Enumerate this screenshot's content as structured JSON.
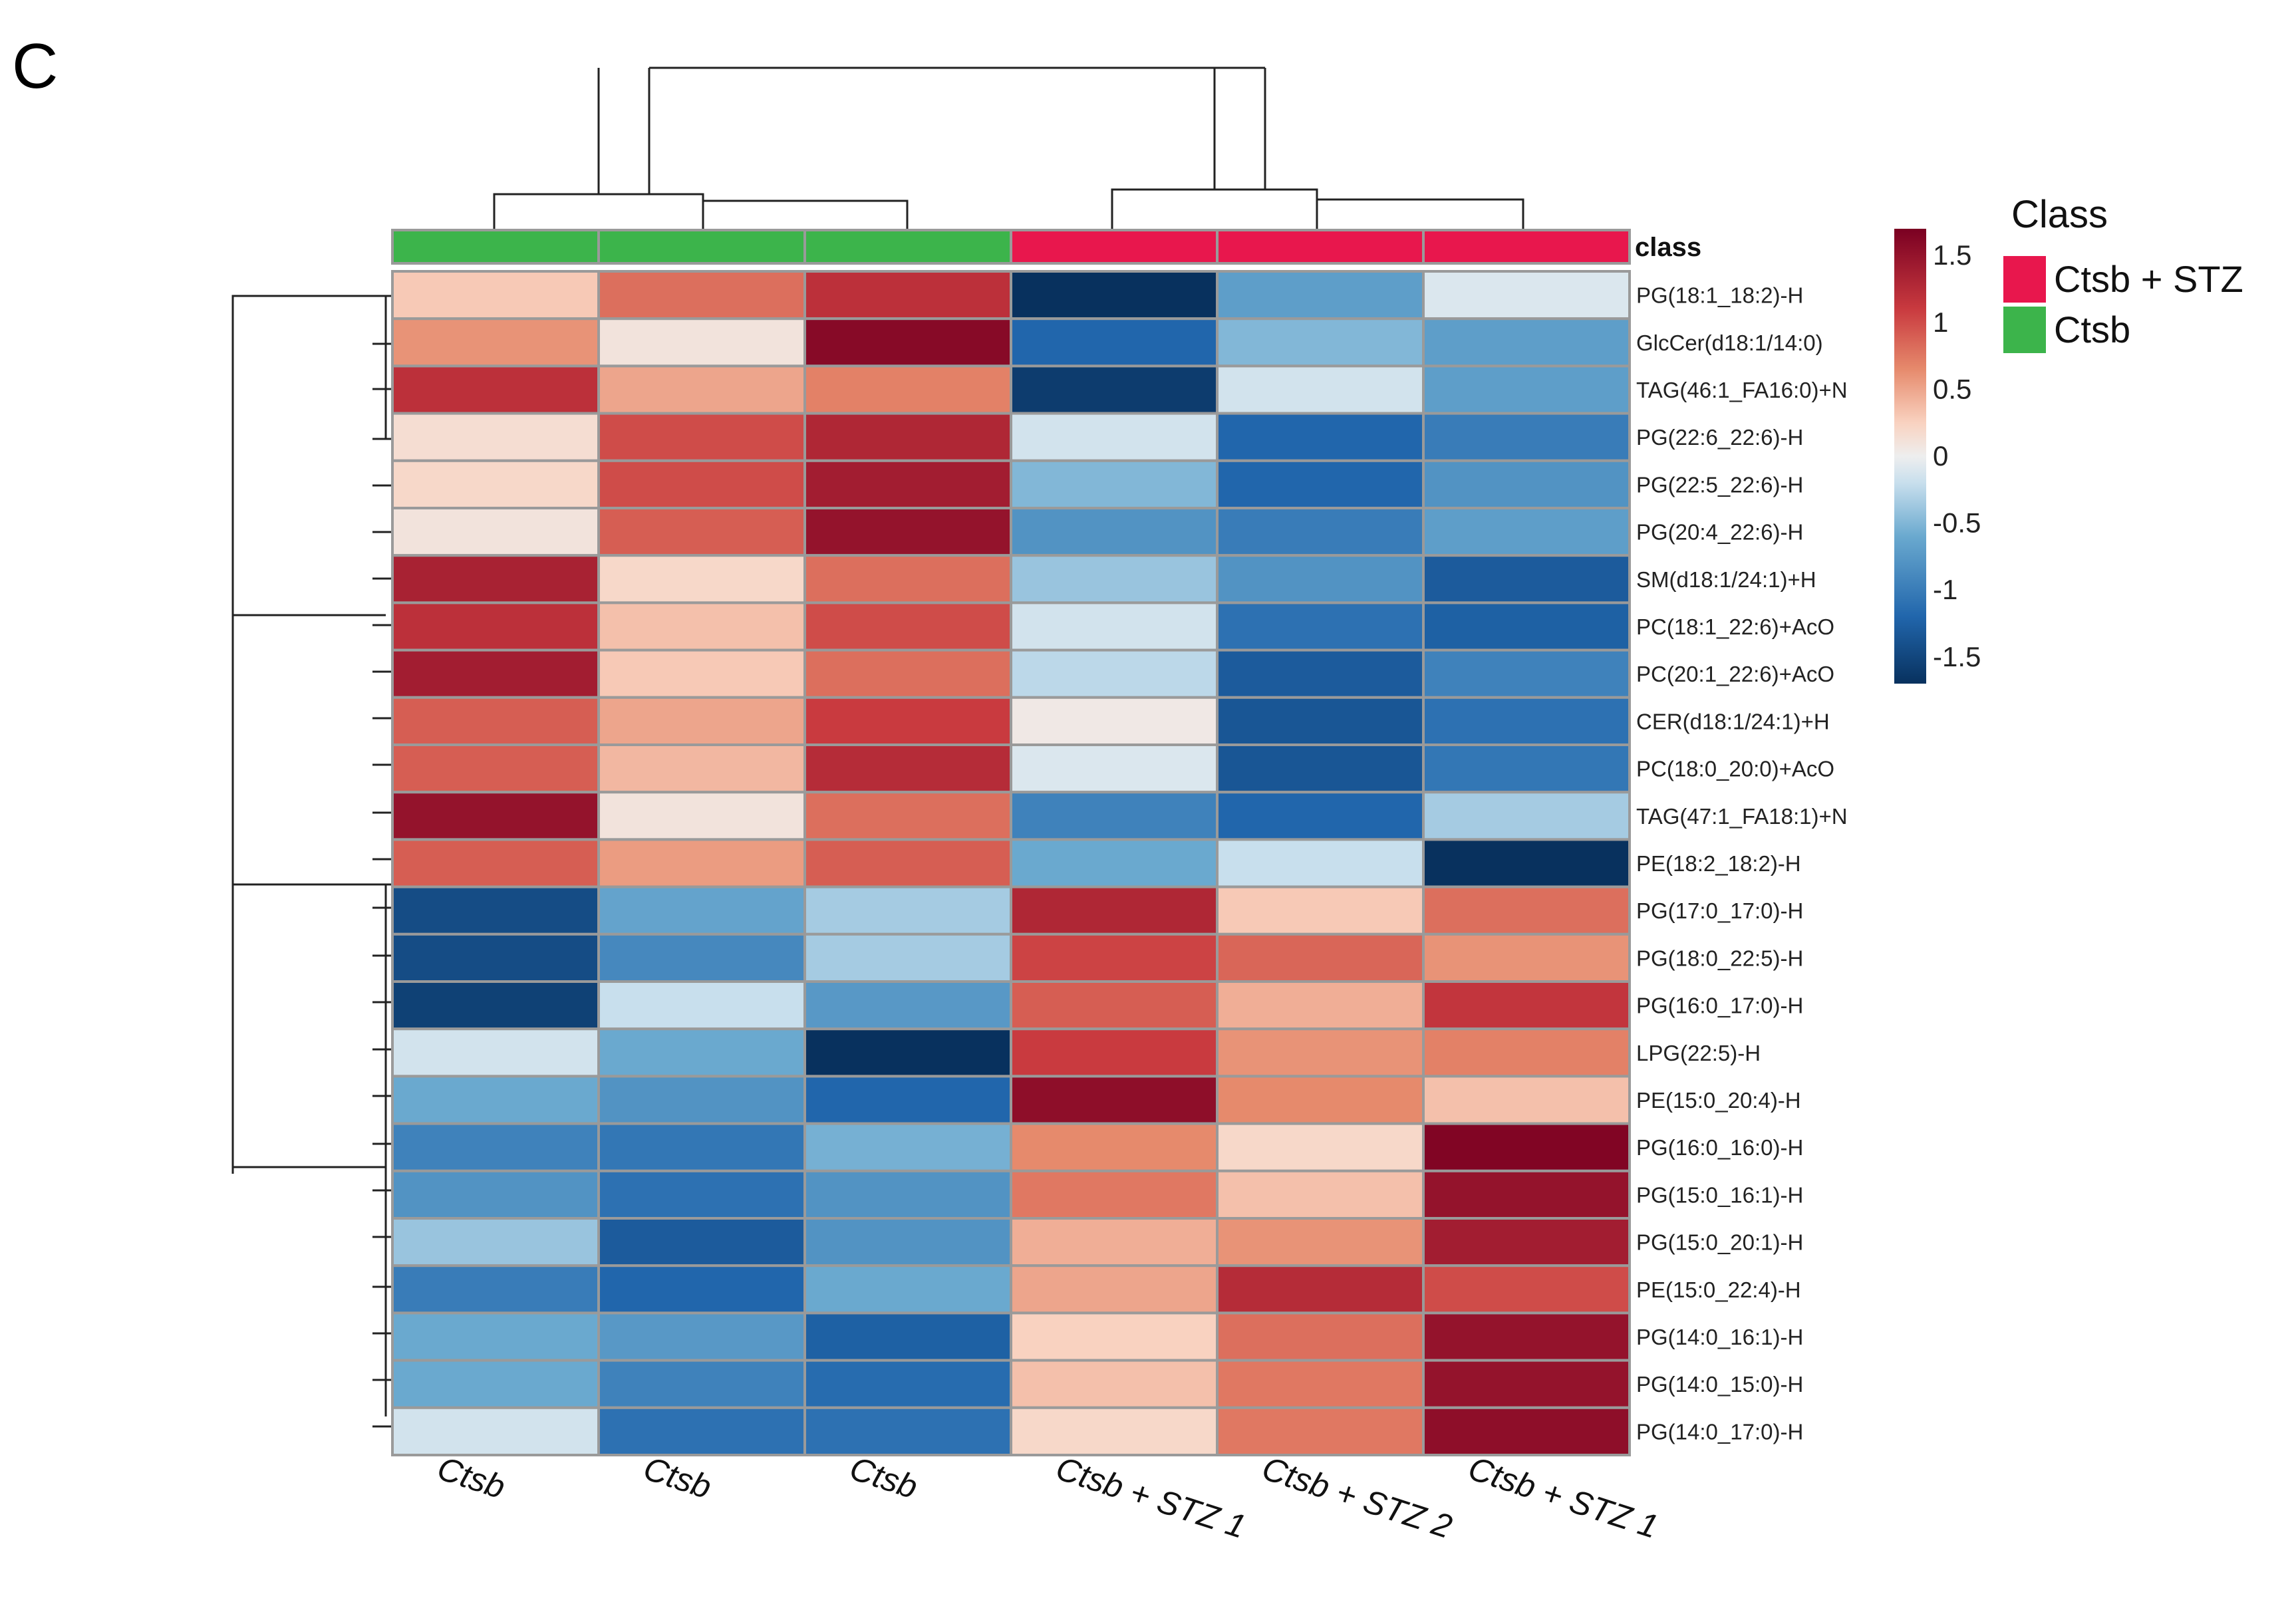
{
  "panel_label": "C",
  "chart_data": {
    "type": "heatmap",
    "title": "",
    "class_row_label": "class",
    "columns": [
      "Ctsb",
      "Ctsb",
      "Ctsb",
      "Ctsb + STZ 1",
      "Ctsb + STZ 2",
      "Ctsb + STZ 1"
    ],
    "column_classes": [
      "Ctsb",
      "Ctsb",
      "Ctsb",
      "Ctsb + STZ",
      "Ctsb + STZ",
      "Ctsb + STZ"
    ],
    "rows": [
      "PG(18:1_18:2)-H",
      "GlcCer(d18:1/14:0)",
      "TAG(46:1_FA16:0)+N",
      "PG(22:6_22:6)-H",
      "PG(22:5_22:6)-H",
      "PG(20:4_22:6)-H",
      "SM(d18:1/24:1)+H",
      "PC(18:1_22:6)+AcO",
      "PC(20:1_22:6)+AcO",
      "CER(d18:1/24:1)+H",
      "PC(18:0_20:0)+AcO",
      "TAG(47:1_FA18:1)+N",
      "PE(18:2_18:2)-H",
      "PG(17:0_17:0)-H",
      "PG(18:0_22:5)-H",
      "PG(16:0_17:0)-H",
      "LPG(22:5)-H",
      "PE(15:0_20:4)-H",
      "PG(16:0_16:0)-H",
      "PG(15:0_16:1)-H",
      "PG(15:0_20:1)-H",
      "PE(15:0_22:4)-H",
      "PG(14:0_16:1)-H",
      "PG(14:0_15:0)-H",
      "PG(14:0_17:0)-H"
    ],
    "values": [
      [
        0.3,
        0.8,
        1.2,
        -1.7,
        -0.7,
        -0.1
      ],
      [
        0.6,
        0.1,
        1.6,
        -1.2,
        -0.5,
        -0.7
      ],
      [
        1.2,
        0.5,
        0.7,
        -1.6,
        -0.15,
        -0.7
      ],
      [
        0.15,
        1.0,
        1.3,
        -0.15,
        -1.2,
        -1.0
      ],
      [
        0.2,
        1.0,
        1.4,
        -0.5,
        -1.2,
        -0.8
      ],
      [
        0.1,
        0.9,
        1.5,
        -0.8,
        -1.0,
        -0.7
      ],
      [
        1.35,
        0.2,
        0.8,
        -0.4,
        -0.8,
        -1.3
      ],
      [
        1.2,
        0.35,
        1.0,
        -0.15,
        -1.1,
        -1.25
      ],
      [
        1.4,
        0.3,
        0.8,
        -0.25,
        -1.3,
        -0.95
      ],
      [
        0.9,
        0.5,
        1.1,
        0.05,
        -1.35,
        -1.1
      ],
      [
        0.9,
        0.4,
        1.25,
        -0.1,
        -1.35,
        -1.05
      ],
      [
        1.5,
        0.1,
        0.8,
        -0.95,
        -1.2,
        -0.35
      ],
      [
        0.9,
        0.55,
        0.9,
        -0.6,
        -0.2,
        -1.75
      ],
      [
        -1.45,
        -0.65,
        -0.35,
        1.3,
        0.3,
        0.8
      ],
      [
        -1.45,
        -0.9,
        -0.35,
        1.05,
        0.85,
        0.6
      ],
      [
        -1.55,
        -0.2,
        -0.75,
        0.9,
        0.45,
        1.15
      ],
      [
        -0.15,
        -0.6,
        -1.75,
        1.1,
        0.6,
        0.7
      ],
      [
        -0.6,
        -0.8,
        -1.2,
        1.55,
        0.65,
        0.35
      ],
      [
        -0.95,
        -1.05,
        -0.55,
        0.65,
        0.2,
        1.65
      ],
      [
        -0.8,
        -1.1,
        -0.8,
        0.75,
        0.35,
        1.5
      ],
      [
        -0.4,
        -1.3,
        -0.8,
        0.45,
        0.6,
        1.4
      ],
      [
        -1.0,
        -1.2,
        -0.6,
        0.5,
        1.25,
        1.0
      ],
      [
        -0.6,
        -0.75,
        -1.25,
        0.25,
        0.8,
        1.5
      ],
      [
        -0.6,
        -0.95,
        -1.15,
        0.35,
        0.75,
        1.5
      ],
      [
        -0.15,
        -1.1,
        -1.1,
        0.2,
        0.75,
        1.55
      ]
    ],
    "color_scale": {
      "min": -1.7,
      "max": 1.7,
      "ticks": [
        1.5,
        1,
        0.5,
        0,
        -0.5,
        -1,
        -1.5
      ],
      "tick_labels": [
        "1.5",
        "1",
        "0.5",
        "0",
        "-0.5",
        "-1",
        "-1.5"
      ],
      "stops": [
        [
          -1.7,
          "#08315e"
        ],
        [
          -1.2,
          "#2166ac"
        ],
        [
          -0.6,
          "#6aa9cf"
        ],
        [
          -0.2,
          "#c8dfed"
        ],
        [
          0.0,
          "#eeeeee"
        ],
        [
          0.25,
          "#f9d2c0"
        ],
        [
          0.65,
          "#e68a6c"
        ],
        [
          1.1,
          "#c93a3f"
        ],
        [
          1.7,
          "#7a0022"
        ]
      ]
    },
    "class_legend": {
      "title": "Class",
      "entries": [
        {
          "label": "Ctsb + STZ",
          "color": "#e8174d"
        },
        {
          "label": "Ctsb",
          "color": "#3cb44b"
        }
      ]
    },
    "legend_position": "right"
  }
}
